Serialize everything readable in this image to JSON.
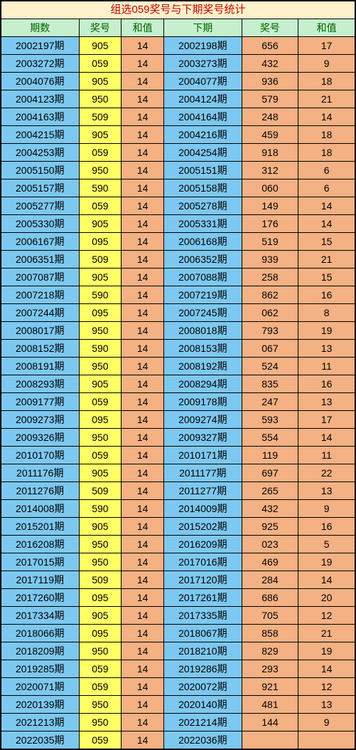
{
  "title": "组选059奖号与下期奖号统计",
  "headers": [
    "期数",
    "奖号",
    "和值",
    "下期",
    "奖号",
    "和值"
  ],
  "colors": {
    "title_bg": "#fff2cc",
    "title_fg": "#c00000",
    "header_bg": "#c6efce",
    "header_fg": "#006100",
    "period_bg": "#7dc8f0",
    "yellow_bg": "#ffff66",
    "orange_bg": "#f4b183",
    "border": "#000000"
  },
  "rows": [
    {
      "pl": "2002197期",
      "nl": "905",
      "sl": "14",
      "pr": "2002198期",
      "nr": "656",
      "sr": "17"
    },
    {
      "pl": "2003272期",
      "nl": "059",
      "sl": "14",
      "pr": "2003273期",
      "nr": "432",
      "sr": "9"
    },
    {
      "pl": "2004076期",
      "nl": "905",
      "sl": "14",
      "pr": "2004077期",
      "nr": "936",
      "sr": "18"
    },
    {
      "pl": "2004123期",
      "nl": "950",
      "sl": "14",
      "pr": "2004124期",
      "nr": "579",
      "sr": "21"
    },
    {
      "pl": "2004163期",
      "nl": "509",
      "sl": "14",
      "pr": "2004164期",
      "nr": "248",
      "sr": "14"
    },
    {
      "pl": "2004215期",
      "nl": "905",
      "sl": "14",
      "pr": "2004216期",
      "nr": "459",
      "sr": "18"
    },
    {
      "pl": "2004253期",
      "nl": "059",
      "sl": "14",
      "pr": "2004254期",
      "nr": "918",
      "sr": "18"
    },
    {
      "pl": "2005150期",
      "nl": "950",
      "sl": "14",
      "pr": "2005151期",
      "nr": "312",
      "sr": "6"
    },
    {
      "pl": "2005157期",
      "nl": "590",
      "sl": "14",
      "pr": "2005158期",
      "nr": "060",
      "sr": "6"
    },
    {
      "pl": "2005277期",
      "nl": "059",
      "sl": "14",
      "pr": "2005278期",
      "nr": "149",
      "sr": "14"
    },
    {
      "pl": "2005330期",
      "nl": "905",
      "sl": "14",
      "pr": "2005331期",
      "nr": "176",
      "sr": "14"
    },
    {
      "pl": "2006167期",
      "nl": "095",
      "sl": "14",
      "pr": "2006168期",
      "nr": "519",
      "sr": "15"
    },
    {
      "pl": "2006351期",
      "nl": "509",
      "sl": "14",
      "pr": "2006352期",
      "nr": "939",
      "sr": "21"
    },
    {
      "pl": "2007087期",
      "nl": "905",
      "sl": "14",
      "pr": "2007088期",
      "nr": "258",
      "sr": "15"
    },
    {
      "pl": "2007218期",
      "nl": "590",
      "sl": "14",
      "pr": "2007219期",
      "nr": "862",
      "sr": "16"
    },
    {
      "pl": "2007244期",
      "nl": "095",
      "sl": "14",
      "pr": "2007245期",
      "nr": "062",
      "sr": "8"
    },
    {
      "pl": "2008017期",
      "nl": "950",
      "sl": "14",
      "pr": "2008018期",
      "nr": "793",
      "sr": "19"
    },
    {
      "pl": "2008152期",
      "nl": "590",
      "sl": "14",
      "pr": "2008153期",
      "nr": "067",
      "sr": "13"
    },
    {
      "pl": "2008191期",
      "nl": "950",
      "sl": "14",
      "pr": "2008192期",
      "nr": "524",
      "sr": "11"
    },
    {
      "pl": "2008293期",
      "nl": "905",
      "sl": "14",
      "pr": "2008294期",
      "nr": "835",
      "sr": "16"
    },
    {
      "pl": "2009177期",
      "nl": "059",
      "sl": "14",
      "pr": "2009178期",
      "nr": "247",
      "sr": "13"
    },
    {
      "pl": "2009273期",
      "nl": "095",
      "sl": "14",
      "pr": "2009274期",
      "nr": "593",
      "sr": "17"
    },
    {
      "pl": "2009326期",
      "nl": "950",
      "sl": "14",
      "pr": "2009327期",
      "nr": "554",
      "sr": "14"
    },
    {
      "pl": "2010170期",
      "nl": "059",
      "sl": "14",
      "pr": "2010171期",
      "nr": "119",
      "sr": "11"
    },
    {
      "pl": "2011176期",
      "nl": "905",
      "sl": "14",
      "pr": "2011177期",
      "nr": "697",
      "sr": "22"
    },
    {
      "pl": "2011276期",
      "nl": "509",
      "sl": "14",
      "pr": "2011277期",
      "nr": "265",
      "sr": "13"
    },
    {
      "pl": "2014008期",
      "nl": "590",
      "sl": "14",
      "pr": "2014009期",
      "nr": "432",
      "sr": "9"
    },
    {
      "pl": "2015201期",
      "nl": "905",
      "sl": "14",
      "pr": "2015202期",
      "nr": "925",
      "sr": "16"
    },
    {
      "pl": "2016208期",
      "nl": "950",
      "sl": "14",
      "pr": "2016209期",
      "nr": "023",
      "sr": "5"
    },
    {
      "pl": "2017015期",
      "nl": "950",
      "sl": "14",
      "pr": "2017016期",
      "nr": "469",
      "sr": "19"
    },
    {
      "pl": "2017119期",
      "nl": "509",
      "sl": "14",
      "pr": "2017120期",
      "nr": "284",
      "sr": "14"
    },
    {
      "pl": "2017260期",
      "nl": "095",
      "sl": "14",
      "pr": "2017261期",
      "nr": "686",
      "sr": "20"
    },
    {
      "pl": "2017334期",
      "nl": "905",
      "sl": "14",
      "pr": "2017335期",
      "nr": "705",
      "sr": "12"
    },
    {
      "pl": "2018066期",
      "nl": "095",
      "sl": "14",
      "pr": "2018067期",
      "nr": "858",
      "sr": "21"
    },
    {
      "pl": "2018209期",
      "nl": "950",
      "sl": "14",
      "pr": "2018210期",
      "nr": "829",
      "sr": "19"
    },
    {
      "pl": "2019285期",
      "nl": "059",
      "sl": "14",
      "pr": "2019286期",
      "nr": "293",
      "sr": "14"
    },
    {
      "pl": "2020071期",
      "nl": "059",
      "sl": "14",
      "pr": "2020072期",
      "nr": "921",
      "sr": "12"
    },
    {
      "pl": "2020139期",
      "nl": "950",
      "sl": "14",
      "pr": "2020140期",
      "nr": "481",
      "sr": "13"
    },
    {
      "pl": "2021213期",
      "nl": "950",
      "sl": "14",
      "pr": "2021214期",
      "nr": "144",
      "sr": "9"
    },
    {
      "pl": "2022035期",
      "nl": "059",
      "sl": "14",
      "pr": "2022036期",
      "nr": "",
      "sr": ""
    }
  ]
}
